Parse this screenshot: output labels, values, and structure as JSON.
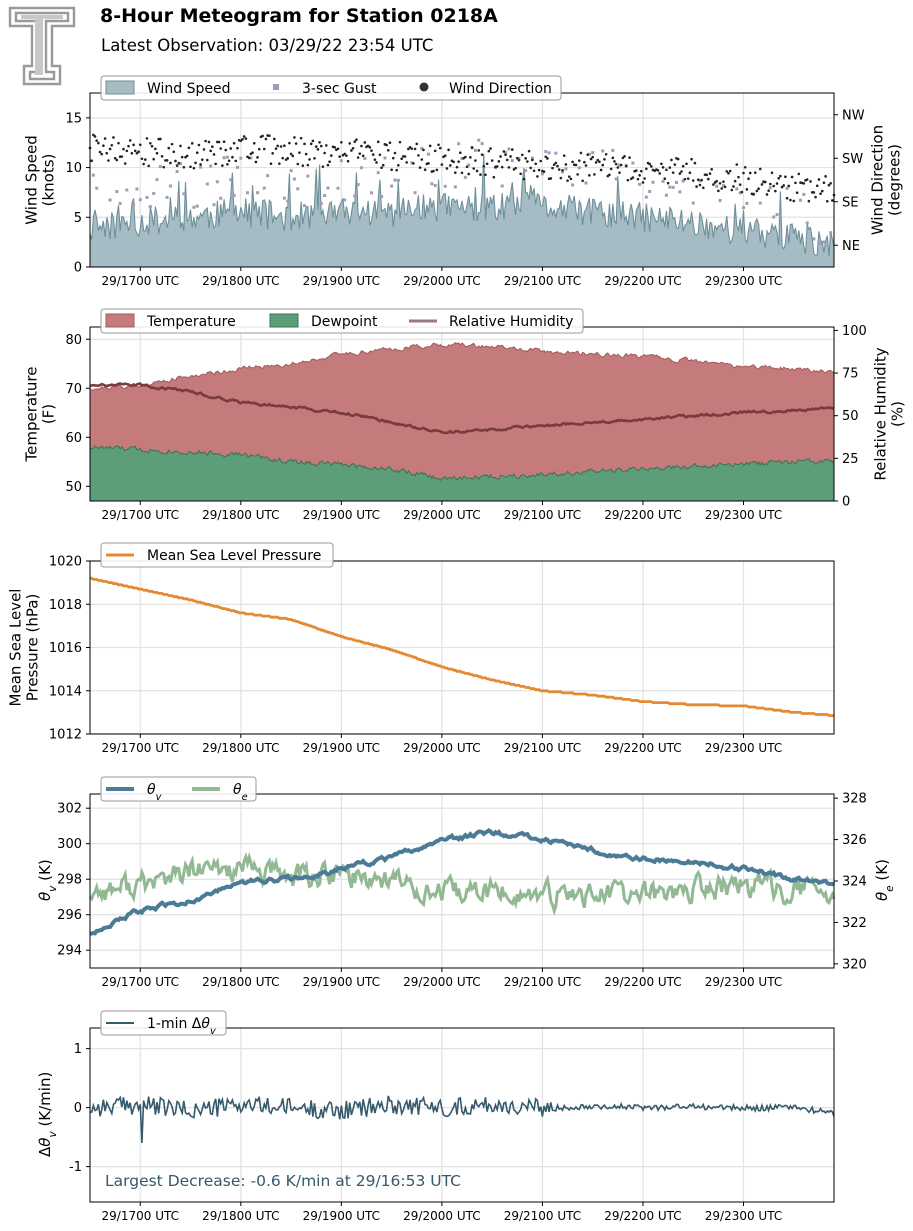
{
  "header": {
    "title": "8-Hour Meteogram for Station 0218A",
    "subtitle": "Latest Observation: 03/29/22 23:54 UTC",
    "logo_icon": "double-t-logo-icon"
  },
  "x_axis": {
    "start_utc": "2022-03-29T16:30Z",
    "end_utc": "2022-03-29T23:54Z",
    "tick_labels": [
      "29/1700 UTC",
      "29/1800 UTC",
      "29/1900 UTC",
      "29/2000 UTC",
      "29/2100 UTC",
      "29/2200 UTC",
      "29/2300 UTC"
    ],
    "tick_times_utc": [
      "2022-03-29T17:00Z",
      "2022-03-29T18:00Z",
      "2022-03-29T19:00Z",
      "2022-03-29T20:00Z",
      "2022-03-29T21:00Z",
      "2022-03-29T22:00Z",
      "2022-03-29T23:00Z"
    ]
  },
  "chart_data": [
    {
      "type": "area",
      "name": "wind",
      "legend": [
        "Wind Speed",
        "3-sec Gust",
        "Wind Direction"
      ],
      "ylabel": [
        "Wind Speed",
        "(knots)"
      ],
      "ylim": [
        0,
        17.5
      ],
      "yticks": [
        0,
        5,
        10,
        15
      ],
      "y2label": [
        "Wind Direction",
        "(degrees)"
      ],
      "y2lim": [
        0,
        360
      ],
      "y2ticks": [
        {
          "value": 45,
          "label": "NE"
        },
        {
          "value": 135,
          "label": "SE"
        },
        {
          "value": 225,
          "label": "SW"
        },
        {
          "value": 315,
          "label": "NW"
        }
      ],
      "grid": true,
      "legend_position": "top-left",
      "colors": {
        "speed": "#a6bcc4",
        "speed_line": "#6e8f99",
        "gust": "#a29bb3",
        "direction": "#222222"
      },
      "series": [
        {
          "name": "Wind Speed",
          "x": [
            "2022-03-29T16:30Z",
            "2022-03-29T17:00Z",
            "2022-03-29T17:30Z",
            "2022-03-29T18:00Z",
            "2022-03-29T18:30Z",
            "2022-03-29T19:00Z",
            "2022-03-29T19:30Z",
            "2022-03-29T20:00Z",
            "2022-03-29T20:30Z",
            "2022-03-29T21:00Z",
            "2022-03-29T21:30Z",
            "2022-03-29T22:00Z",
            "2022-03-29T22:30Z",
            "2022-03-29T23:00Z",
            "2022-03-29T23:30Z",
            "2022-03-29T23:54Z"
          ],
          "values": [
            4,
            4.5,
            5,
            5.5,
            5,
            5.5,
            5.5,
            6,
            6,
            6,
            5.5,
            5,
            4.5,
            3.5,
            3,
            2
          ]
        },
        {
          "name": "3-sec Gust",
          "x": [
            "2022-03-29T16:30Z",
            "2022-03-29T17:00Z",
            "2022-03-29T17:30Z",
            "2022-03-29T18:00Z",
            "2022-03-29T18:30Z",
            "2022-03-29T19:00Z",
            "2022-03-29T19:30Z",
            "2022-03-29T20:00Z",
            "2022-03-29T20:30Z",
            "2022-03-29T21:00Z",
            "2022-03-29T21:30Z",
            "2022-03-29T22:00Z",
            "2022-03-29T22:30Z",
            "2022-03-29T23:00Z",
            "2022-03-29T23:30Z",
            "2022-03-29T23:54Z"
          ],
          "values": [
            7,
            7.5,
            8,
            9,
            8,
            9,
            9.5,
            10,
            10.5,
            11,
            10,
            9,
            8,
            6.5,
            5.5,
            4
          ]
        },
        {
          "name": "Wind Direction",
          "x": [
            "2022-03-29T16:30Z",
            "2022-03-29T17:00Z",
            "2022-03-29T17:30Z",
            "2022-03-29T18:00Z",
            "2022-03-29T18:30Z",
            "2022-03-29T19:00Z",
            "2022-03-29T19:30Z",
            "2022-03-29T20:00Z",
            "2022-03-29T20:30Z",
            "2022-03-29T21:00Z",
            "2022-03-29T21:30Z",
            "2022-03-29T22:00Z",
            "2022-03-29T22:30Z",
            "2022-03-29T23:00Z",
            "2022-03-29T23:30Z",
            "2022-03-29T23:54Z"
          ],
          "values": [
            250,
            240,
            230,
            245,
            240,
            235,
            230,
            225,
            215,
            210,
            205,
            200,
            195,
            180,
            165,
            160
          ]
        }
      ]
    },
    {
      "type": "area",
      "name": "temperature",
      "legend": [
        "Temperature",
        "Dewpoint",
        "Relative Humidity"
      ],
      "ylabel": [
        "Temperature",
        "(F)"
      ],
      "ylim": [
        47,
        82.5
      ],
      "yticks": [
        50,
        60,
        70,
        80
      ],
      "y2label": [
        "Relative Humidity",
        "(%)"
      ],
      "y2lim": [
        0,
        102
      ],
      "y2ticks": [
        0,
        25,
        50,
        75,
        100
      ],
      "grid": true,
      "legend_position": "top-left",
      "colors": {
        "temperature": "#c57b7c",
        "temperature_line": "#9f5a5c",
        "dewpoint": "#5c9e77",
        "dewpoint_line": "#3d6f52",
        "rh": "#7a3a3f"
      },
      "series": [
        {
          "name": "Temperature",
          "x": [
            "2022-03-29T16:30Z",
            "2022-03-29T17:00Z",
            "2022-03-29T17:30Z",
            "2022-03-29T18:00Z",
            "2022-03-29T18:30Z",
            "2022-03-29T19:00Z",
            "2022-03-29T19:30Z",
            "2022-03-29T20:00Z",
            "2022-03-29T20:30Z",
            "2022-03-29T21:00Z",
            "2022-03-29T21:30Z",
            "2022-03-29T22:00Z",
            "2022-03-29T22:30Z",
            "2022-03-29T23:00Z",
            "2022-03-29T23:30Z",
            "2022-03-29T23:54Z"
          ],
          "values": [
            70,
            70.5,
            72.5,
            74,
            75,
            77,
            78,
            79,
            78.5,
            77.5,
            77,
            76.5,
            75.5,
            74.5,
            74,
            73.5
          ]
        },
        {
          "name": "Dewpoint",
          "x": [
            "2022-03-29T16:30Z",
            "2022-03-29T17:00Z",
            "2022-03-29T17:30Z",
            "2022-03-29T18:00Z",
            "2022-03-29T18:30Z",
            "2022-03-29T19:00Z",
            "2022-03-29T19:30Z",
            "2022-03-29T20:00Z",
            "2022-03-29T20:30Z",
            "2022-03-29T21:00Z",
            "2022-03-29T21:30Z",
            "2022-03-29T22:00Z",
            "2022-03-29T22:30Z",
            "2022-03-29T23:00Z",
            "2022-03-29T23:30Z",
            "2022-03-29T23:54Z"
          ],
          "values": [
            58,
            57.5,
            57,
            56.5,
            55,
            54.5,
            53.5,
            51.5,
            52,
            52.5,
            53,
            53.5,
            54,
            54.5,
            55,
            55
          ]
        },
        {
          "name": "Relative Humidity",
          "x": [
            "2022-03-29T16:30Z",
            "2022-03-29T17:00Z",
            "2022-03-29T17:30Z",
            "2022-03-29T18:00Z",
            "2022-03-29T18:30Z",
            "2022-03-29T19:00Z",
            "2022-03-29T19:30Z",
            "2022-03-29T20:00Z",
            "2022-03-29T20:30Z",
            "2022-03-29T21:00Z",
            "2022-03-29T21:30Z",
            "2022-03-29T22:00Z",
            "2022-03-29T22:30Z",
            "2022-03-29T23:00Z",
            "2022-03-29T23:30Z",
            "2022-03-29T23:54Z"
          ],
          "values": [
            68,
            68,
            64,
            58,
            55,
            52,
            46,
            40,
            42,
            44,
            46,
            48,
            50,
            52,
            53,
            54
          ]
        }
      ]
    },
    {
      "type": "line",
      "name": "pressure",
      "legend": [
        "Mean Sea Level Pressure"
      ],
      "ylabel": [
        "Mean Sea Level",
        "Pressure (hPa)"
      ],
      "ylim": [
        1012,
        1020
      ],
      "yticks": [
        1012,
        1014,
        1016,
        1018,
        1020
      ],
      "grid": true,
      "legend_position": "top-left",
      "colors": {
        "mslp": "#e48a33"
      },
      "series": [
        {
          "name": "Mean Sea Level Pressure",
          "x": [
            "2022-03-29T16:30Z",
            "2022-03-29T17:00Z",
            "2022-03-29T17:30Z",
            "2022-03-29T18:00Z",
            "2022-03-29T18:30Z",
            "2022-03-29T19:00Z",
            "2022-03-29T19:30Z",
            "2022-03-29T20:00Z",
            "2022-03-29T20:30Z",
            "2022-03-29T21:00Z",
            "2022-03-29T21:30Z",
            "2022-03-29T22:00Z",
            "2022-03-29T22:30Z",
            "2022-03-29T23:00Z",
            "2022-03-29T23:30Z",
            "2022-03-29T23:54Z"
          ],
          "values": [
            1019.2,
            1018.7,
            1018.2,
            1017.6,
            1017.3,
            1016.5,
            1015.9,
            1015.1,
            1014.5,
            1014.0,
            1013.8,
            1013.5,
            1013.35,
            1013.3,
            1013.0,
            1012.85
          ]
        }
      ]
    },
    {
      "type": "line",
      "name": "theta",
      "legend": [
        "θv",
        "θe"
      ],
      "ylabel": "θv (K)",
      "ylim": [
        293,
        302.8
      ],
      "yticks": [
        294,
        296,
        298,
        300,
        302
      ],
      "y2label": "θe (K)",
      "y2lim": [
        319.8,
        328.2
      ],
      "y2ticks": [
        320,
        322,
        324,
        326,
        328
      ],
      "grid": true,
      "legend_position": "top-left",
      "colors": {
        "theta_v": "#4b7b96",
        "theta_e": "#92b993"
      },
      "series": [
        {
          "name": "θv",
          "x": [
            "2022-03-29T16:30Z",
            "2022-03-29T17:00Z",
            "2022-03-29T17:30Z",
            "2022-03-29T18:00Z",
            "2022-03-29T18:30Z",
            "2022-03-29T19:00Z",
            "2022-03-29T19:30Z",
            "2022-03-29T20:00Z",
            "2022-03-29T20:30Z",
            "2022-03-29T21:00Z",
            "2022-03-29T21:30Z",
            "2022-03-29T22:00Z",
            "2022-03-29T22:30Z",
            "2022-03-29T23:00Z",
            "2022-03-29T23:30Z",
            "2022-03-29T23:54Z"
          ],
          "values": [
            295.0,
            296.2,
            296.8,
            297.8,
            298.0,
            298.6,
            299.2,
            300.2,
            300.6,
            300.3,
            299.6,
            299.2,
            299.0,
            298.6,
            298.0,
            297.8
          ]
        },
        {
          "name": "θe",
          "x": [
            "2022-03-29T16:30Z",
            "2022-03-29T17:00Z",
            "2022-03-29T17:30Z",
            "2022-03-29T18:00Z",
            "2022-03-29T18:30Z",
            "2022-03-29T19:00Z",
            "2022-03-29T19:30Z",
            "2022-03-29T20:00Z",
            "2022-03-29T20:30Z",
            "2022-03-29T21:00Z",
            "2022-03-29T21:30Z",
            "2022-03-29T22:00Z",
            "2022-03-29T22:30Z",
            "2022-03-29T23:00Z",
            "2022-03-29T23:30Z",
            "2022-03-29T23:54Z"
          ],
          "values": [
            323.5,
            323.8,
            324.4,
            324.6,
            324.2,
            324.3,
            324.1,
            323.3,
            323.5,
            323.2,
            323.4,
            323.3,
            323.6,
            323.8,
            323.6,
            323.4
          ]
        }
      ]
    },
    {
      "type": "line",
      "name": "delta",
      "legend": [
        "1-min Δθv"
      ],
      "ylabel": "Δθv (K/min)",
      "ylim": [
        -1.6,
        1.35
      ],
      "yticks": [
        -1,
        0,
        1
      ],
      "grid": true,
      "legend_position": "top-left",
      "colors": {
        "delta": "#355a6c"
      },
      "annotation": "Largest Decrease: -0.6 K/min at 29/16:53 UTC",
      "annotation_color": "#355a6c",
      "series": [
        {
          "name": "1-min Δθv",
          "x": [
            "2022-03-29T16:30Z",
            "2022-03-29T17:00Z",
            "2022-03-29T17:30Z",
            "2022-03-29T18:00Z",
            "2022-03-29T18:30Z",
            "2022-03-29T19:00Z",
            "2022-03-29T19:30Z",
            "2022-03-29T20:00Z",
            "2022-03-29T20:30Z",
            "2022-03-29T21:00Z",
            "2022-03-29T21:30Z",
            "2022-03-29T22:00Z",
            "2022-03-29T22:30Z",
            "2022-03-29T23:00Z",
            "2022-03-29T23:30Z",
            "2022-03-29T23:54Z"
          ],
          "values": [
            0.0,
            0.05,
            -0.05,
            0.05,
            0.0,
            -0.05,
            0.05,
            0.0,
            0.05,
            -0.02,
            0.03,
            0.0,
            0.02,
            -0.01,
            0.01,
            -0.1
          ]
        }
      ]
    }
  ]
}
